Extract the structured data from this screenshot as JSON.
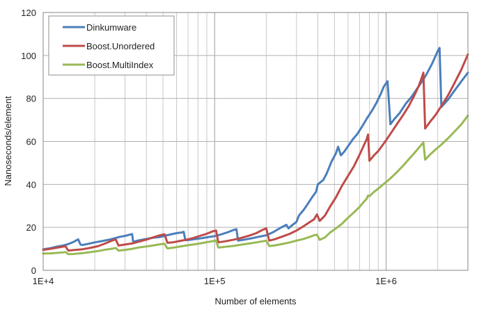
{
  "chart_data": {
    "type": "line",
    "xlabel": "Number of elements",
    "ylabel": "Nanoseconds/element",
    "xscale": "log",
    "xlim": [
      10000,
      3000000
    ],
    "ylim": [
      0,
      120
    ],
    "grid": true,
    "legend_position": "top-left",
    "x_tick_labels": [
      {
        "value": 10000,
        "label": "1E+4"
      },
      {
        "value": 100000,
        "label": "1E+5"
      },
      {
        "value": 1000000,
        "label": "1E+6"
      }
    ],
    "y_ticks": [
      0,
      20,
      40,
      60,
      80,
      100,
      120
    ],
    "series": [
      {
        "name": "Dinkumware",
        "color": "#4a7ebb",
        "points": [
          [
            10000,
            9.8
          ],
          [
            11000,
            10.3
          ],
          [
            12000,
            11
          ],
          [
            13000,
            11.5
          ],
          [
            14000,
            12.2
          ],
          [
            15000,
            13.2
          ],
          [
            16000,
            14.4
          ],
          [
            16500,
            12
          ],
          [
            17000,
            11.8
          ],
          [
            18000,
            12.2
          ],
          [
            20000,
            13
          ],
          [
            22000,
            13.6
          ],
          [
            25000,
            14.5
          ],
          [
            28000,
            15.6
          ],
          [
            30000,
            16
          ],
          [
            32000,
            16.6
          ],
          [
            33000,
            16.9
          ],
          [
            33500,
            13.3
          ],
          [
            36000,
            13.9
          ],
          [
            40000,
            14.6
          ],
          [
            44000,
            15.2
          ],
          [
            48000,
            15.5
          ],
          [
            52000,
            16.2
          ],
          [
            56000,
            16.8
          ],
          [
            60000,
            17.3
          ],
          [
            64000,
            17.6
          ],
          [
            66000,
            17.9
          ],
          [
            67500,
            14
          ],
          [
            72000,
            14.2
          ],
          [
            78000,
            14.6
          ],
          [
            85000,
            15
          ],
          [
            92000,
            15.5
          ],
          [
            100000,
            15.9
          ],
          [
            110000,
            16.8
          ],
          [
            120000,
            17.8
          ],
          [
            130000,
            18.9
          ],
          [
            134000,
            19.1
          ],
          [
            137000,
            13.8
          ],
          [
            150000,
            14.3
          ],
          [
            165000,
            14.9
          ],
          [
            180000,
            15.6
          ],
          [
            200000,
            16.3
          ],
          [
            220000,
            17.8
          ],
          [
            240000,
            19.6
          ],
          [
            255000,
            20.7
          ],
          [
            262000,
            21.2
          ],
          [
            270000,
            19.5
          ],
          [
            280000,
            20.7
          ],
          [
            300000,
            22.5
          ],
          [
            310000,
            25.5
          ],
          [
            330000,
            28
          ],
          [
            350000,
            31
          ],
          [
            370000,
            34
          ],
          [
            390000,
            36.5
          ],
          [
            400000,
            40
          ],
          [
            430000,
            42
          ],
          [
            450000,
            45
          ],
          [
            480000,
            50.5
          ],
          [
            510000,
            54.5
          ],
          [
            525000,
            57.5
          ],
          [
            545000,
            53.5
          ],
          [
            570000,
            55.2
          ],
          [
            600000,
            57.8
          ],
          [
            640000,
            61
          ],
          [
            680000,
            63.5
          ],
          [
            720000,
            66.6
          ],
          [
            780000,
            71.2
          ],
          [
            830000,
            74.5
          ],
          [
            880000,
            78
          ],
          [
            930000,
            82
          ],
          [
            970000,
            85.5
          ],
          [
            1020000,
            88
          ],
          [
            1060000,
            68
          ],
          [
            1120000,
            70.5
          ],
          [
            1200000,
            73.2
          ],
          [
            1300000,
            77.5
          ],
          [
            1400000,
            80.5
          ],
          [
            1500000,
            84
          ],
          [
            1600000,
            87.3
          ],
          [
            1700000,
            90.5
          ],
          [
            1850000,
            96
          ],
          [
            2000000,
            102
          ],
          [
            2050000,
            103.5
          ],
          [
            2100000,
            76
          ],
          [
            2300000,
            79.5
          ],
          [
            2500000,
            83.5
          ],
          [
            2750000,
            88
          ],
          [
            3000000,
            92
          ]
        ]
      },
      {
        "name": "Boost.Unordered",
        "color": "#be4b48",
        "points": [
          [
            10000,
            9.5
          ],
          [
            11000,
            10
          ],
          [
            12000,
            10.5
          ],
          [
            13000,
            11
          ],
          [
            13500,
            11.2
          ],
          [
            14000,
            9.2
          ],
          [
            15000,
            9.4
          ],
          [
            17000,
            9.8
          ],
          [
            19000,
            10.5
          ],
          [
            21000,
            11.3
          ],
          [
            23000,
            12.5
          ],
          [
            25000,
            13.7
          ],
          [
            26500,
            14.4
          ],
          [
            27500,
            11.5
          ],
          [
            30000,
            12
          ],
          [
            33000,
            12.5
          ],
          [
            36000,
            13.3
          ],
          [
            40000,
            14.3
          ],
          [
            44000,
            15.4
          ],
          [
            48000,
            16.3
          ],
          [
            51000,
            16.8
          ],
          [
            53000,
            12.8
          ],
          [
            57000,
            13
          ],
          [
            62000,
            13.6
          ],
          [
            68000,
            14.2
          ],
          [
            75000,
            15
          ],
          [
            82000,
            16
          ],
          [
            90000,
            17
          ],
          [
            98000,
            18.2
          ],
          [
            102000,
            18.5
          ],
          [
            105000,
            13
          ],
          [
            115000,
            13.5
          ],
          [
            130000,
            14.3
          ],
          [
            145000,
            15.2
          ],
          [
            160000,
            16.2
          ],
          [
            175000,
            17.3
          ],
          [
            190000,
            18.8
          ],
          [
            200000,
            19.5
          ],
          [
            208000,
            13.8
          ],
          [
            225000,
            14.5
          ],
          [
            250000,
            15.8
          ],
          [
            275000,
            17
          ],
          [
            300000,
            18.5
          ],
          [
            330000,
            20.5
          ],
          [
            360000,
            22.5
          ],
          [
            380000,
            23.7
          ],
          [
            395000,
            26
          ],
          [
            410000,
            23
          ],
          [
            440000,
            25.5
          ],
          [
            470000,
            29.5
          ],
          [
            510000,
            34
          ],
          [
            550000,
            39
          ],
          [
            600000,
            44
          ],
          [
            650000,
            48.5
          ],
          [
            700000,
            53.8
          ],
          [
            740000,
            58
          ],
          [
            770000,
            61
          ],
          [
            785000,
            63.2
          ],
          [
            800000,
            51
          ],
          [
            850000,
            53.5
          ],
          [
            900000,
            55.5
          ],
          [
            980000,
            59.5
          ],
          [
            1050000,
            63
          ],
          [
            1150000,
            67.8
          ],
          [
            1250000,
            72
          ],
          [
            1350000,
            76.2
          ],
          [
            1450000,
            80.8
          ],
          [
            1550000,
            85.8
          ],
          [
            1620000,
            90
          ],
          [
            1650000,
            92
          ],
          [
            1690000,
            66
          ],
          [
            1800000,
            69
          ],
          [
            1950000,
            72.5
          ],
          [
            2100000,
            76.5
          ],
          [
            2300000,
            81.5
          ],
          [
            2500000,
            87
          ],
          [
            2750000,
            93.5
          ],
          [
            3000000,
            100.5
          ]
        ]
      },
      {
        "name": "Boost.MultiIndex",
        "color": "#98b954",
        "points": [
          [
            10000,
            7.8
          ],
          [
            11000,
            7.9
          ],
          [
            12000,
            8.1
          ],
          [
            13000,
            8.3
          ],
          [
            13500,
            8.5
          ],
          [
            14000,
            7.5
          ],
          [
            15000,
            7.6
          ],
          [
            17000,
            8
          ],
          [
            19000,
            8.5
          ],
          [
            21000,
            9
          ],
          [
            23000,
            9.6
          ],
          [
            25000,
            10
          ],
          [
            26500,
            10.4
          ],
          [
            27500,
            9.2
          ],
          [
            30000,
            9.5
          ],
          [
            33000,
            10
          ],
          [
            36000,
            10.6
          ],
          [
            40000,
            11.1
          ],
          [
            44000,
            11.6
          ],
          [
            48000,
            12.1
          ],
          [
            51000,
            12.4
          ],
          [
            53000,
            10.2
          ],
          [
            57000,
            10.5
          ],
          [
            62000,
            11
          ],
          [
            68000,
            11.5
          ],
          [
            75000,
            12
          ],
          [
            82000,
            12.5
          ],
          [
            90000,
            13.1
          ],
          [
            98000,
            13.6
          ],
          [
            102000,
            13.9
          ],
          [
            105000,
            10.6
          ],
          [
            115000,
            10.9
          ],
          [
            130000,
            11.4
          ],
          [
            145000,
            12
          ],
          [
            160000,
            12.5
          ],
          [
            175000,
            13
          ],
          [
            190000,
            13.5
          ],
          [
            200000,
            13.8
          ],
          [
            208000,
            11.3
          ],
          [
            225000,
            11.6
          ],
          [
            250000,
            12.3
          ],
          [
            275000,
            13
          ],
          [
            300000,
            13.8
          ],
          [
            330000,
            14.6
          ],
          [
            360000,
            15.6
          ],
          [
            380000,
            16.3
          ],
          [
            395000,
            16.6
          ],
          [
            410000,
            14.2
          ],
          [
            440000,
            15.3
          ],
          [
            470000,
            17.5
          ],
          [
            510000,
            19.5
          ],
          [
            550000,
            21.5
          ],
          [
            600000,
            24.5
          ],
          [
            650000,
            27
          ],
          [
            700000,
            29.5
          ],
          [
            740000,
            31.8
          ],
          [
            770000,
            33.3
          ],
          [
            785000,
            34.8
          ],
          [
            800000,
            34.5
          ],
          [
            850000,
            36.5
          ],
          [
            900000,
            38
          ],
          [
            980000,
            40.5
          ],
          [
            1050000,
            42.5
          ],
          [
            1150000,
            45.5
          ],
          [
            1250000,
            48.5
          ],
          [
            1350000,
            51.5
          ],
          [
            1450000,
            54.2
          ],
          [
            1550000,
            57
          ],
          [
            1620000,
            58.8
          ],
          [
            1650000,
            59.5
          ],
          [
            1690000,
            51.5
          ],
          [
            1800000,
            53.8
          ],
          [
            1950000,
            56.3
          ],
          [
            2100000,
            58.5
          ],
          [
            2300000,
            61.5
          ],
          [
            2500000,
            64.5
          ],
          [
            2750000,
            68
          ],
          [
            3000000,
            72
          ]
        ]
      }
    ]
  }
}
